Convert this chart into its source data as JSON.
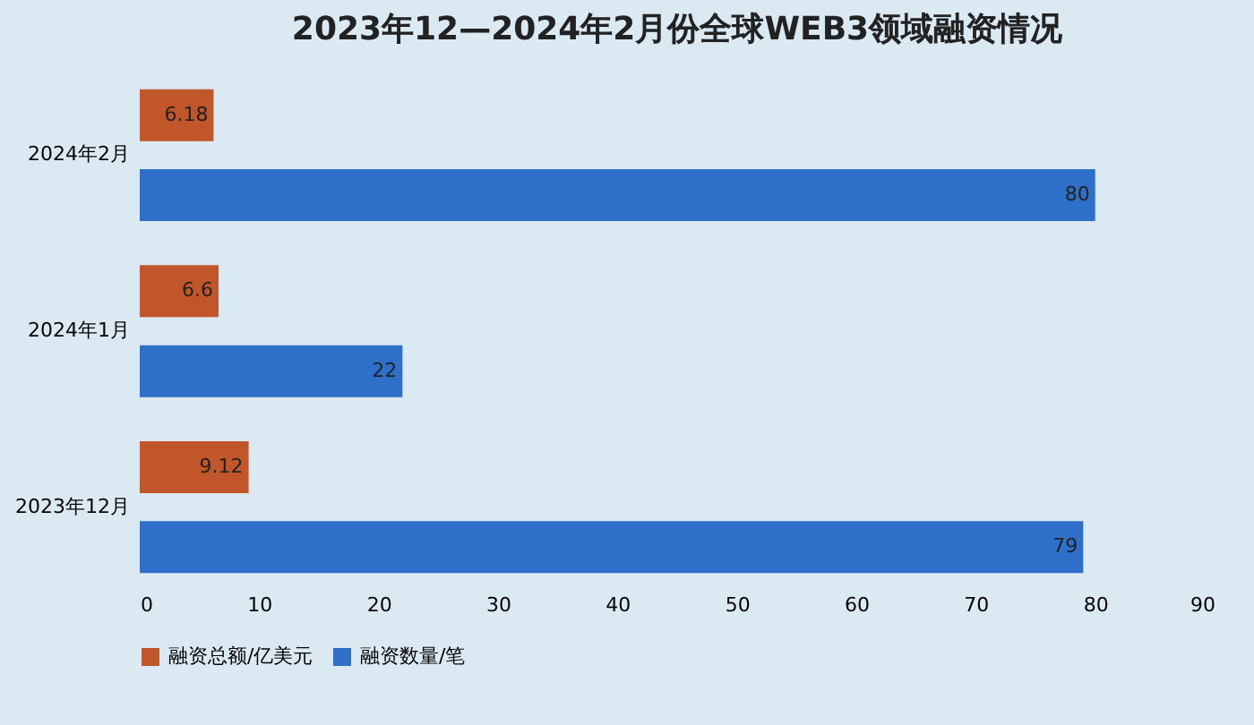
{
  "chart_data": {
    "type": "bar",
    "orientation": "horizontal",
    "title": "2023年12—2024年2月份全球WEB3领域融资情况",
    "categories": [
      "2024年2月",
      "2024年1月",
      "2023年12月"
    ],
    "series": [
      {
        "name": "融资总额/亿美元",
        "color": "#c0562a",
        "values": [
          6.18,
          6.6,
          9.12
        ]
      },
      {
        "name": "融资数量/笔",
        "color": "#2e6fc9",
        "values": [
          80,
          22,
          79
        ]
      }
    ],
    "xlim": [
      0,
      90
    ],
    "xticks": [
      0,
      10,
      20,
      30,
      40,
      50,
      60,
      70,
      80,
      90
    ],
    "data_labels": true,
    "legend": "bottom"
  }
}
